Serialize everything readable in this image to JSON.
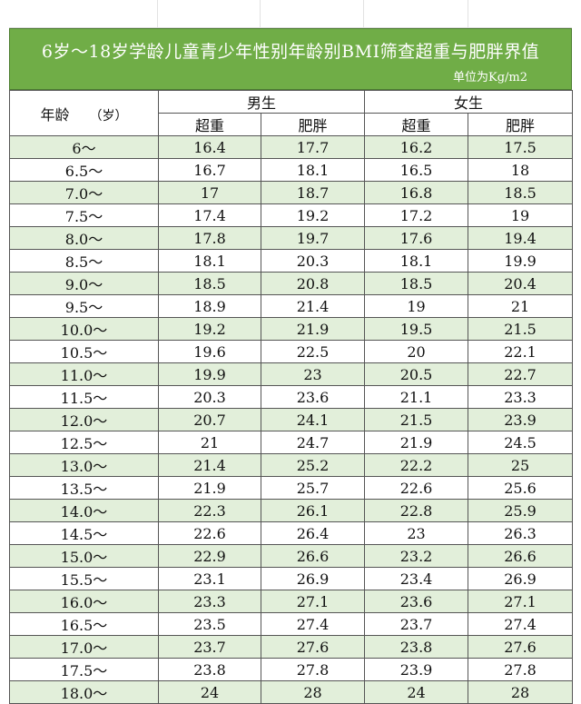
{
  "title": "6岁～18岁学龄儿童青少年性别年龄别BMI筛查超重与肥胖界值",
  "unit": "单位为Kg/m2",
  "header": {
    "age": "年龄",
    "age_unit": "（岁）",
    "male": "男生",
    "female": "女生",
    "overweight": "超重",
    "obese": "肥胖"
  },
  "rows": [
    {
      "age": "6～",
      "m_ow": "16.4",
      "m_ob": "17.7",
      "f_ow": "16.2",
      "f_ob": "17.5"
    },
    {
      "age": "6.5～",
      "m_ow": "16.7",
      "m_ob": "18.1",
      "f_ow": "16.5",
      "f_ob": "18"
    },
    {
      "age": "7.0～",
      "m_ow": "17",
      "m_ob": "18.7",
      "f_ow": "16.8",
      "f_ob": "18.5"
    },
    {
      "age": "7.5～",
      "m_ow": "17.4",
      "m_ob": "19.2",
      "f_ow": "17.2",
      "f_ob": "19"
    },
    {
      "age": "8.0～",
      "m_ow": "17.8",
      "m_ob": "19.7",
      "f_ow": "17.6",
      "f_ob": "19.4"
    },
    {
      "age": "8.5～",
      "m_ow": "18.1",
      "m_ob": "20.3",
      "f_ow": "18.1",
      "f_ob": "19.9"
    },
    {
      "age": "9.0～",
      "m_ow": "18.5",
      "m_ob": "20.8",
      "f_ow": "18.5",
      "f_ob": "20.4"
    },
    {
      "age": "9.5～",
      "m_ow": "18.9",
      "m_ob": "21.4",
      "f_ow": "19",
      "f_ob": "21"
    },
    {
      "age": "10.0～",
      "m_ow": "19.2",
      "m_ob": "21.9",
      "f_ow": "19.5",
      "f_ob": "21.5"
    },
    {
      "age": "10.5～",
      "m_ow": "19.6",
      "m_ob": "22.5",
      "f_ow": "20",
      "f_ob": "22.1"
    },
    {
      "age": "11.0～",
      "m_ow": "19.9",
      "m_ob": "23",
      "f_ow": "20.5",
      "f_ob": "22.7"
    },
    {
      "age": "11.5～",
      "m_ow": "20.3",
      "m_ob": "23.6",
      "f_ow": "21.1",
      "f_ob": "23.3"
    },
    {
      "age": "12.0～",
      "m_ow": "20.7",
      "m_ob": "24.1",
      "f_ow": "21.5",
      "f_ob": "23.9"
    },
    {
      "age": "12.5～",
      "m_ow": "21",
      "m_ob": "24.7",
      "f_ow": "21.9",
      "f_ob": "24.5"
    },
    {
      "age": "13.0～",
      "m_ow": "21.4",
      "m_ob": "25.2",
      "f_ow": "22.2",
      "f_ob": "25"
    },
    {
      "age": "13.5～",
      "m_ow": "21.9",
      "m_ob": "25.7",
      "f_ow": "22.6",
      "f_ob": "25.6"
    },
    {
      "age": "14.0～",
      "m_ow": "22.3",
      "m_ob": "26.1",
      "f_ow": "22.8",
      "f_ob": "25.9"
    },
    {
      "age": "14.5～",
      "m_ow": "22.6",
      "m_ob": "26.4",
      "f_ow": "23",
      "f_ob": "26.3"
    },
    {
      "age": "15.0～",
      "m_ow": "22.9",
      "m_ob": "26.6",
      "f_ow": "23.2",
      "f_ob": "26.6"
    },
    {
      "age": "15.5～",
      "m_ow": "23.1",
      "m_ob": "26.9",
      "f_ow": "23.4",
      "f_ob": "26.9"
    },
    {
      "age": "16.0～",
      "m_ow": "23.3",
      "m_ob": "27.1",
      "f_ow": "23.6",
      "f_ob": "27.1"
    },
    {
      "age": "16.5～",
      "m_ow": "23.5",
      "m_ob": "27.4",
      "f_ow": "23.7",
      "f_ob": "27.4"
    },
    {
      "age": "17.0～",
      "m_ow": "23.7",
      "m_ob": "27.6",
      "f_ow": "23.8",
      "f_ob": "27.6"
    },
    {
      "age": "17.5～",
      "m_ow": "23.8",
      "m_ob": "27.8",
      "f_ow": "23.9",
      "f_ob": "27.8"
    },
    {
      "age": "18.0～",
      "m_ow": "24",
      "m_ob": "28",
      "f_ow": "24",
      "f_ob": "28"
    }
  ],
  "colors": {
    "banner": "#70ad47",
    "stripe": "#e2efda"
  }
}
